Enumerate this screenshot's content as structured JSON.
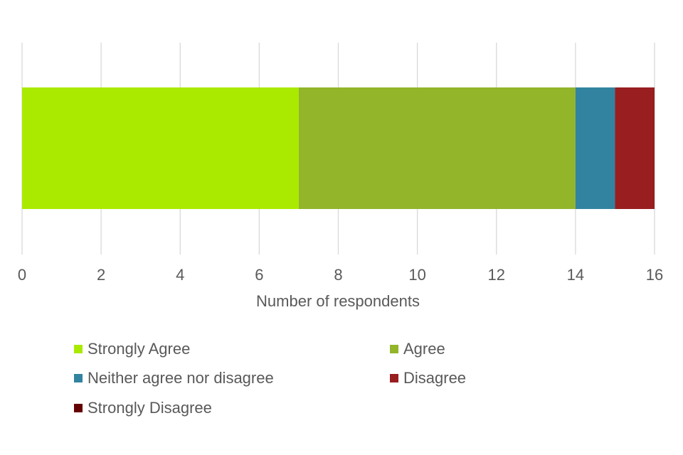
{
  "chart_data": {
    "type": "bar",
    "orientation": "horizontal",
    "stacked": true,
    "title": "",
    "xlabel": "Number of respondents",
    "ylabel": "",
    "xlim": [
      0,
      16
    ],
    "x_ticks": [
      0,
      2,
      4,
      6,
      8,
      10,
      12,
      14,
      16
    ],
    "grid": "vertical",
    "legend_position": "bottom",
    "categories": [
      ""
    ],
    "series": [
      {
        "name": "Strongly Agree",
        "values": [
          7
        ],
        "color": "#aaea00"
      },
      {
        "name": "Agree",
        "values": [
          7
        ],
        "color": "#92b52a"
      },
      {
        "name": "Neither agree nor disagree",
        "values": [
          1
        ],
        "color": "#3283a0"
      },
      {
        "name": "Disagree",
        "values": [
          1
        ],
        "color": "#981e20"
      },
      {
        "name": "Strongly Disagree",
        "values": [
          0
        ],
        "color": "#650000"
      }
    ]
  }
}
